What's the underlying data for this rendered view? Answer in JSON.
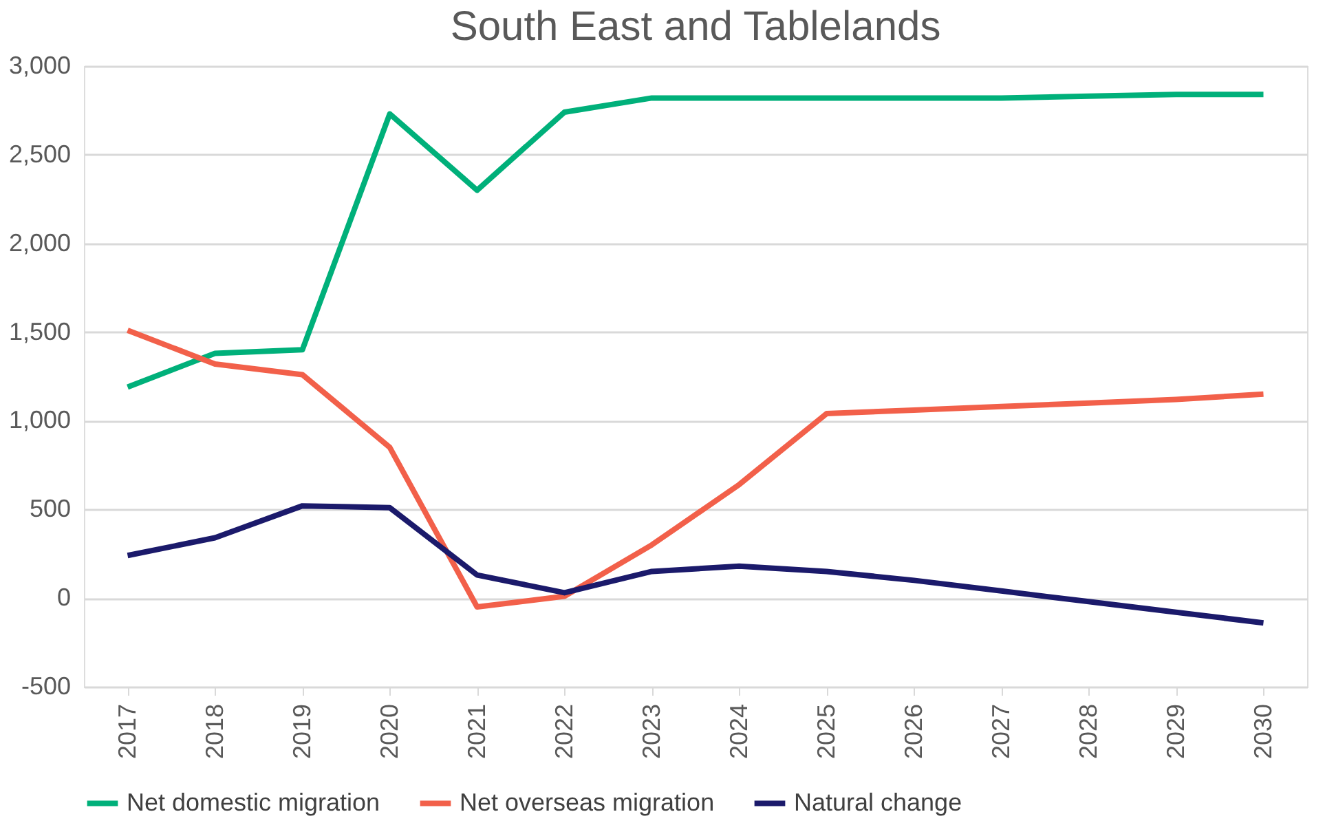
{
  "chart_data": {
    "type": "line",
    "title": "South East and Tablelands",
    "categories": [
      "2017",
      "2018",
      "2019",
      "2020",
      "2021",
      "2022",
      "2023",
      "2024",
      "2025",
      "2026",
      "2027",
      "2028",
      "2029",
      "2030"
    ],
    "series": [
      {
        "name": "Net domestic migration",
        "color": "#00b07a",
        "values": [
          1190,
          1380,
          1400,
          2730,
          2300,
          2740,
          2820,
          2820,
          2820,
          2820,
          2820,
          2830,
          2840,
          2840
        ]
      },
      {
        "name": "Net overseas migration",
        "color": "#f2604a",
        "values": [
          1510,
          1320,
          1260,
          850,
          -50,
          10,
          300,
          640,
          1040,
          1060,
          1080,
          1100,
          1120,
          1150
        ]
      },
      {
        "name": "Natural change",
        "color": "#1b1a6b",
        "values": [
          240,
          340,
          520,
          510,
          130,
          30,
          150,
          180,
          150,
          100,
          40,
          -20,
          -80,
          -140
        ]
      }
    ],
    "ylim": [
      -500,
      3000
    ],
    "yticks": [
      {
        "value": -500,
        "label": "-500"
      },
      0,
      500,
      {
        "value": 1000,
        "label": "1,000"
      },
      {
        "value": 1500,
        "label": "1,500"
      },
      {
        "value": 2000,
        "label": "2,000"
      },
      {
        "value": 2500,
        "label": "2,500"
      },
      {
        "value": 3000,
        "label": "3,000"
      }
    ],
    "grid": "y",
    "legend": "bottom",
    "marker": "none",
    "line_style": "solid"
  }
}
